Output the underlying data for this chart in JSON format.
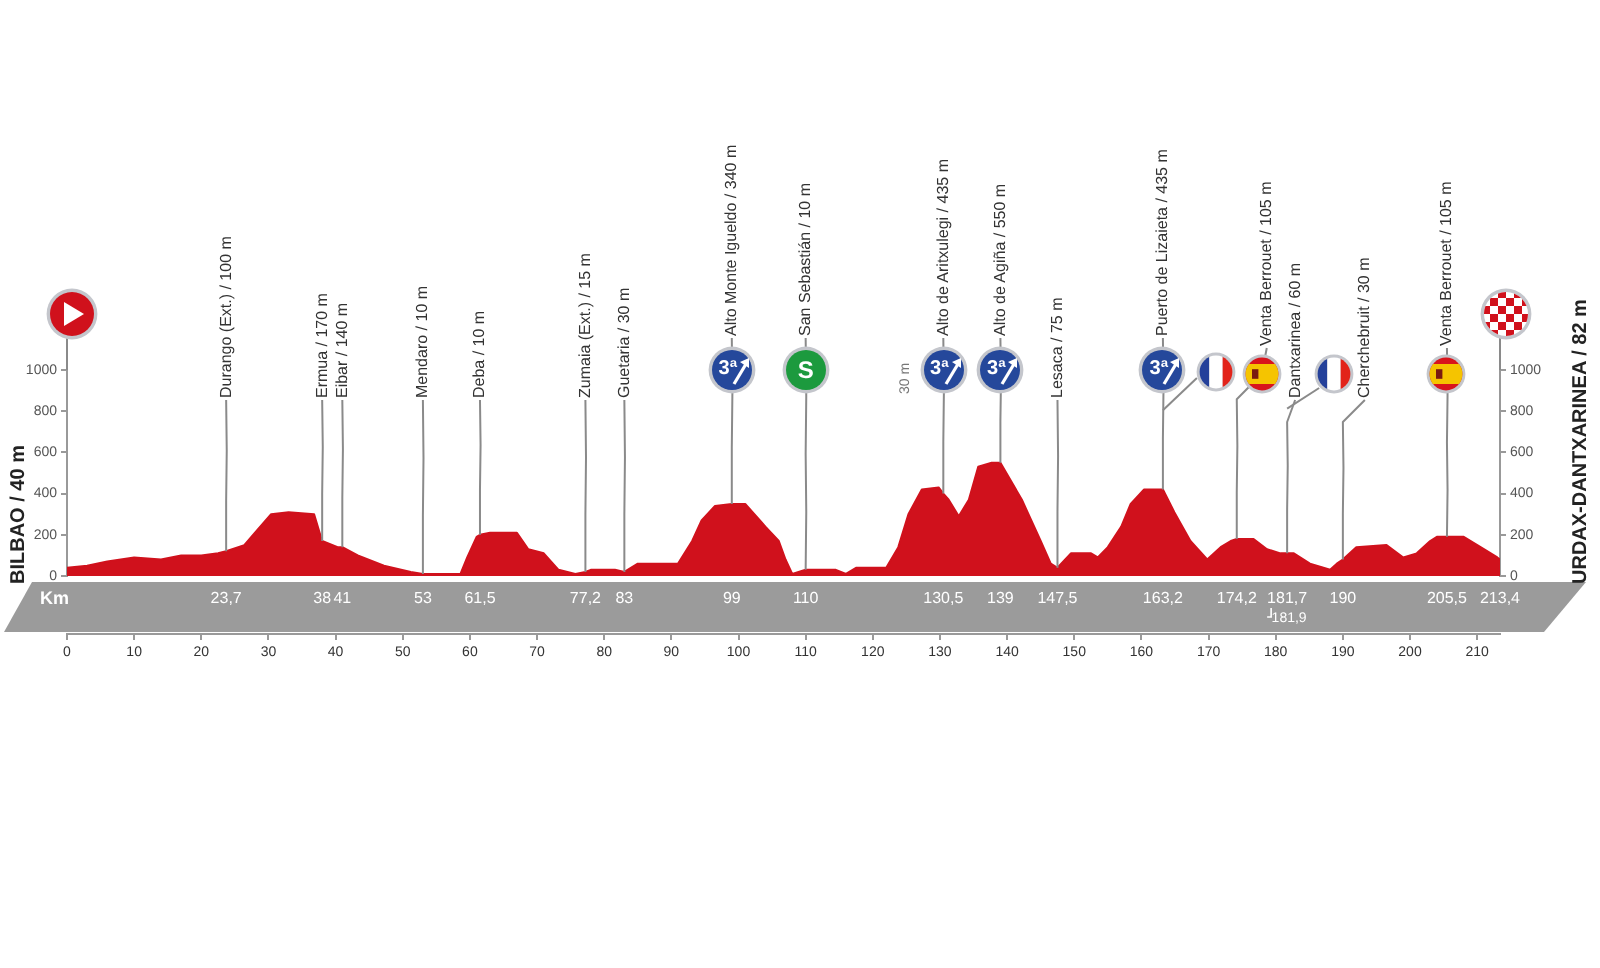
{
  "chart_data": {
    "type": "area",
    "color": "#d0111c",
    "x": [
      0,
      3,
      6,
      8,
      10,
      14,
      17,
      20,
      22.5,
      23.7,
      26.4,
      28,
      30.4,
      33,
      36.8,
      37.8,
      38,
      40.3,
      41,
      43.3,
      47.2,
      51.2,
      53,
      56,
      58.6,
      59.6,
      61,
      61.5,
      63,
      67,
      68.7,
      71,
      73.2,
      75.7,
      77.2,
      78,
      81.6,
      83,
      85,
      91,
      93.1,
      94.5,
      96.5,
      99,
      101,
      104,
      106,
      107,
      108,
      110,
      111,
      114.5,
      116,
      117.5,
      122,
      123.8,
      125.3,
      127.3,
      129.8,
      130.5,
      131.3,
      132.8,
      134.3,
      135.7,
      137.7,
      139,
      142.2,
      145,
      146.5,
      147.5,
      149.5,
      152.5,
      153.5,
      155,
      157,
      158.4,
      160.4,
      163.2,
      164.9,
      167.3,
      169.8,
      171.8,
      173.3,
      174.2,
      176.7,
      178.7,
      180.7,
      181.7,
      182.7,
      185.1,
      188.1,
      189.1,
      190,
      192,
      196.5,
      199,
      201,
      203,
      204,
      205.5,
      208,
      211,
      213,
      213.4
    ],
    "values": [
      40,
      50,
      70,
      80,
      90,
      80,
      100,
      100,
      110,
      120,
      150,
      210,
      300,
      310,
      300,
      190,
      170,
      140,
      140,
      100,
      50,
      20,
      10,
      10,
      10,
      90,
      190,
      200,
      210,
      210,
      130,
      110,
      30,
      10,
      20,
      30,
      30,
      20,
      60,
      60,
      170,
      270,
      340,
      350,
      350,
      240,
      170,
      80,
      10,
      30,
      30,
      30,
      10,
      40,
      40,
      140,
      300,
      420,
      430,
      400,
      370,
      290,
      370,
      530,
      550,
      550,
      370,
      170,
      60,
      40,
      110,
      110,
      90,
      140,
      240,
      350,
      420,
      420,
      310,
      170,
      80,
      140,
      170,
      180,
      180,
      130,
      110,
      110,
      110,
      60,
      30,
      60,
      80,
      140,
      150,
      90,
      110,
      170,
      190,
      190,
      190,
      130,
      90,
      80
    ],
    "xlim": [
      0,
      213.4
    ],
    "xticks": [
      0,
      10,
      20,
      30,
      40,
      50,
      60,
      70,
      80,
      90,
      100,
      110,
      120,
      130,
      140,
      150,
      160,
      170,
      180,
      190,
      200,
      210
    ],
    "x2lim": [
      0,
      213.4
    ],
    "x2label": "Km",
    "x2ticks": [
      {
        "value": 23.7,
        "label": "23,7"
      },
      38,
      41,
      53,
      {
        "value": 61.5,
        "label": "61,5"
      },
      {
        "value": 77.2,
        "label": "77,2"
      },
      83,
      99,
      110,
      {
        "value": 130.5,
        "label": "130,5"
      },
      139,
      {
        "value": 147.5,
        "label": "147,5"
      },
      {
        "value": 163.2,
        "label": "163,2"
      },
      {
        "value": 174.2,
        "label": "174,2"
      },
      {
        "value": 181.7,
        "label": "181,7"
      },
      190,
      {
        "value": 205.5,
        "label": "205,5"
      },
      {
        "value": 213.4,
        "label": "213,4"
      }
    ],
    "ylim": [
      0,
      1000
    ],
    "yticks": [
      0,
      200,
      400,
      600,
      800,
      1000
    ],
    "y2lim": [
      0,
      1000
    ],
    "y2ticks": [
      0,
      200,
      400,
      600,
      800,
      1000
    ],
    "ylabel": "BILBAO / 40 m",
    "y2label": "URDAX-DANTXARINEA / 82 m",
    "annotations": [
      {
        "text": "Durango (Ext.) / 100 m",
        "x": 23.7,
        "y": 120
      },
      {
        "text": "Ermua / 170 m",
        "x": 38,
        "y": 170
      },
      {
        "text": "Eibar / 140 m",
        "x": 41,
        "y": 140
      },
      {
        "text": "Mendaro / 10 m",
        "x": 53,
        "y": 10
      },
      {
        "text": "Deba / 10 m",
        "x": 61.5,
        "y": 200
      },
      {
        "text": "Zumaia (Ext.) / 15 m",
        "x": 77.2,
        "y": 20
      },
      {
        "text": "Guetaria / 30 m",
        "x": 83,
        "y": 20
      },
      {
        "text": "Alto Monte Igueldo / 340 m",
        "x": 99,
        "y": 350
      },
      {
        "text": "San Sebastián / 10 m",
        "x": 110,
        "y": 30
      },
      {
        "text": "Alto de Aritxulegi / 435 m",
        "x": 130.5,
        "y": 400
      },
      {
        "text": "Alto de Agiña / 550 m",
        "x": 139,
        "y": 550
      },
      {
        "text": "Lesaca / 75 m",
        "x": 147.5,
        "y": 40
      },
      {
        "text": "Puerto de Lizaieta / 435 m",
        "x": 163.2,
        "y": 420
      },
      {
        "text": "Venta Berrouet / 105 m",
        "x": 174.2,
        "y": 180
      },
      {
        "text": "Dantxarinea / 60 m",
        "x": 181.7,
        "y": 110
      },
      {
        "text": "Cherchebruit / 30 m",
        "x": 190,
        "y": 80
      },
      {
        "text": "Venta Berrouet / 105 m",
        "x": 205.5,
        "y": 190
      },
      {
        "text": "3ª",
        "x": 99
      },
      {
        "text": "S",
        "x": 110
      },
      {
        "text": "3ª",
        "x": 130.5
      },
      {
        "text": "3ª",
        "x": 139
      },
      {
        "text": "3ª",
        "x": 163.2
      },
      "30 m",
      "181,9"
    ]
  }
}
